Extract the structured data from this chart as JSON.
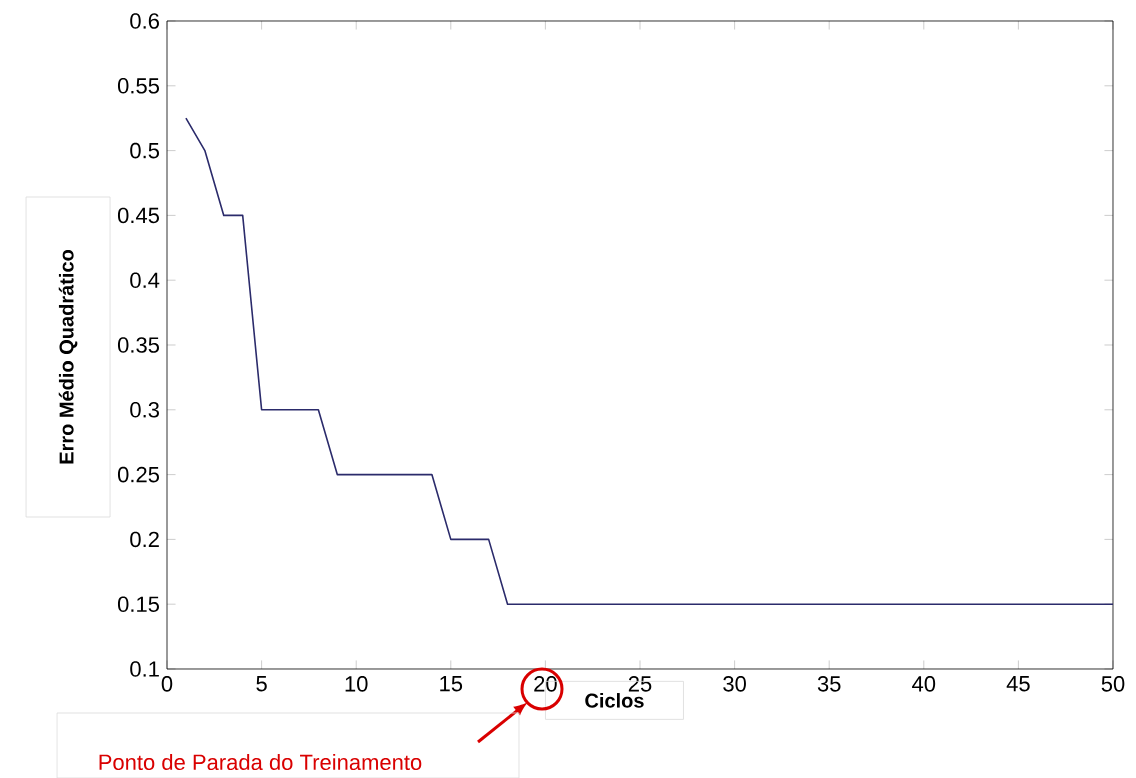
{
  "chart_data": {
    "type": "line",
    "xlabel": "Ciclos",
    "ylabel": "Erro Médio Quadrático",
    "color": "#2b2b6b",
    "x": [
      1,
      2,
      3,
      4,
      5,
      8,
      9,
      14,
      15,
      17,
      18,
      50
    ],
    "values": [
      0.525,
      0.5,
      0.45,
      0.45,
      0.3,
      0.3,
      0.25,
      0.25,
      0.2,
      0.2,
      0.15,
      0.15
    ],
    "xlim": [
      0,
      50
    ],
    "ylim": [
      0.1,
      0.6
    ],
    "xticks": [
      0,
      5,
      10,
      15,
      20,
      25,
      30,
      35,
      40,
      45,
      50
    ],
    "yticks": [
      0.1,
      0.15,
      0.2,
      0.25,
      0.3,
      0.35,
      0.4,
      0.45,
      0.5,
      0.55,
      0.6
    ],
    "annotations": [
      "Ponto de Parada do Treinamento"
    ]
  }
}
